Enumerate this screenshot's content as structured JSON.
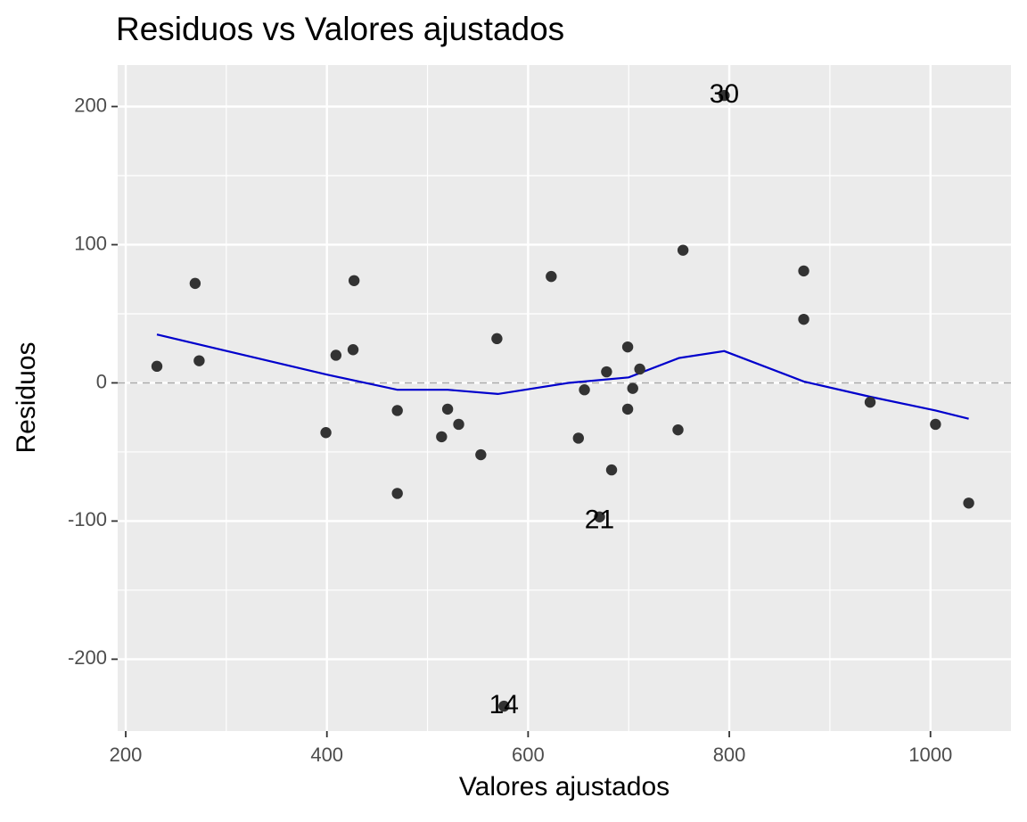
{
  "chart_data": {
    "type": "scatter",
    "title": "Residuos vs Valores ajustados",
    "xlabel": "Valores ajustados",
    "ylabel": "Residuos",
    "xlim": [
      192,
      1080
    ],
    "ylim": [
      -252,
      230
    ],
    "x_ticks": [
      200,
      400,
      600,
      800,
      1000
    ],
    "x_tick_labels": [
      "200",
      "400",
      "600",
      "800",
      "1000"
    ],
    "x_minor_ticks": [
      300,
      500,
      700,
      900
    ],
    "y_ticks": [
      200,
      100,
      0,
      -100,
      -200
    ],
    "y_tick_labels": [
      "200",
      "100",
      "0",
      "-100",
      "-200"
    ],
    "y_minor_ticks": [
      150,
      50,
      -50,
      -150
    ],
    "grid": true,
    "reference_line": {
      "y": 0,
      "style": "dashed",
      "color": "#a6a6a6"
    },
    "colors": {
      "panel": "#ebebeb",
      "grid": "#ffffff",
      "points": "#333333",
      "smooth": "#0000cc"
    },
    "points": [
      {
        "x": 231,
        "y": 12
      },
      {
        "x": 269,
        "y": 72
      },
      {
        "x": 273,
        "y": 16
      },
      {
        "x": 399,
        "y": -36
      },
      {
        "x": 409,
        "y": 20
      },
      {
        "x": 426,
        "y": 24
      },
      {
        "x": 427,
        "y": 74
      },
      {
        "x": 470,
        "y": -20
      },
      {
        "x": 470,
        "y": -80
      },
      {
        "x": 514,
        "y": -39
      },
      {
        "x": 520,
        "y": -19
      },
      {
        "x": 531,
        "y": -30
      },
      {
        "x": 553,
        "y": -52
      },
      {
        "x": 569,
        "y": 32
      },
      {
        "x": 576,
        "y": -234
      },
      {
        "x": 623,
        "y": 77
      },
      {
        "x": 650,
        "y": -40
      },
      {
        "x": 656,
        "y": -5
      },
      {
        "x": 671,
        "y": -97
      },
      {
        "x": 678,
        "y": 8
      },
      {
        "x": 683,
        "y": -63
      },
      {
        "x": 699,
        "y": 26
      },
      {
        "x": 699,
        "y": -19
      },
      {
        "x": 704,
        "y": -4
      },
      {
        "x": 711,
        "y": 10
      },
      {
        "x": 749,
        "y": -34
      },
      {
        "x": 754,
        "y": 96
      },
      {
        "x": 795,
        "y": 208
      },
      {
        "x": 874,
        "y": 81
      },
      {
        "x": 874,
        "y": 46
      },
      {
        "x": 940,
        "y": -14
      },
      {
        "x": 1005,
        "y": -30
      },
      {
        "x": 1038,
        "y": -87
      }
    ],
    "point_labels": [
      {
        "text": "30",
        "x": 795,
        "y": 208
      },
      {
        "text": "21",
        "x": 671,
        "y": -100
      },
      {
        "text": "14",
        "x": 576,
        "y": -234
      }
    ],
    "smooth_line": [
      {
        "x": 231,
        "y": 35
      },
      {
        "x": 400,
        "y": 6
      },
      {
        "x": 470,
        "y": -5
      },
      {
        "x": 520,
        "y": -5
      },
      {
        "x": 570,
        "y": -8
      },
      {
        "x": 640,
        "y": 0
      },
      {
        "x": 700,
        "y": 4
      },
      {
        "x": 750,
        "y": 18
      },
      {
        "x": 795,
        "y": 23
      },
      {
        "x": 874,
        "y": 1
      },
      {
        "x": 940,
        "y": -10
      },
      {
        "x": 1005,
        "y": -20
      },
      {
        "x": 1038,
        "y": -26
      }
    ]
  }
}
